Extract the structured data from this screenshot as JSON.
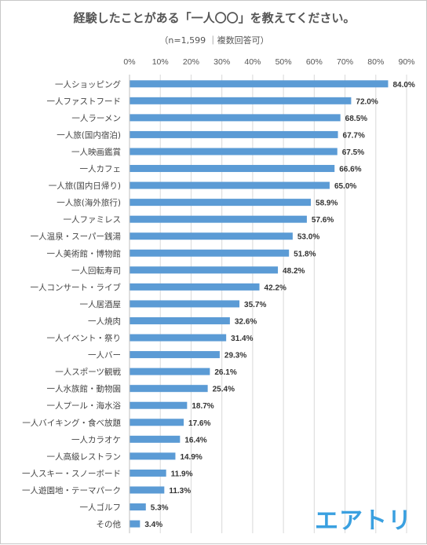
{
  "header": {
    "title": "経験したことがある「一人〇〇」を教えてください。",
    "subtitle": "（n=1,599 ｜複数回答可）"
  },
  "logo": {
    "text": "エアトリ"
  },
  "colors": {
    "bar": "#5b9bd5",
    "grid": "#d9d9d9",
    "text": "#444444",
    "logo": "#3aa0e0"
  },
  "chart_data": {
    "type": "bar",
    "orientation": "horizontal",
    "title": "経験したことがある「一人〇〇」を教えてください。",
    "subtitle": "（n=1,599 ｜複数回答可）",
    "xlim": [
      0,
      90
    ],
    "ticks": [
      "0%",
      "10%",
      "20%",
      "30%",
      "40%",
      "50%",
      "60%",
      "70%",
      "80%",
      "90%"
    ],
    "tick_values": [
      0,
      10,
      20,
      30,
      40,
      50,
      60,
      70,
      80,
      90
    ],
    "grid": true,
    "categories": [
      "一人ショッピング",
      "一人ファストフード",
      "一人ラーメン",
      "一人旅(国内宿泊)",
      "一人映画鑑賞",
      "一人カフェ",
      "一人旅(国内日帰り)",
      "一人旅(海外旅行)",
      "一人ファミレス",
      "一人温泉・スーパー銭湯",
      "一人美術館・博物館",
      "一人回転寿司",
      "一人コンサート・ライブ",
      "一人居酒屋",
      "一人焼肉",
      "一人イベント・祭り",
      "一人バー",
      "一人スポーツ観戦",
      "一人水族館・動物園",
      "一人プール・海水浴",
      "一人バイキング・食べ放題",
      "一人カラオケ",
      "一人高級レストラン",
      "一人スキー・スノーボード",
      "一人遊園地・テーマパーク",
      "一人ゴルフ",
      "その他"
    ],
    "values": [
      84.0,
      72.0,
      68.5,
      67.7,
      67.5,
      66.6,
      65.0,
      58.9,
      57.6,
      53.0,
      51.8,
      48.2,
      42.2,
      35.7,
      32.6,
      31.4,
      29.3,
      26.1,
      25.4,
      18.7,
      17.6,
      16.4,
      14.9,
      11.9,
      11.3,
      5.3,
      3.4
    ],
    "labels": [
      "84.0%",
      "72.0%",
      "68.5%",
      "67.7%",
      "67.5%",
      "66.6%",
      "65.0%",
      "58.9%",
      "57.6%",
      "53.0%",
      "51.8%",
      "48.2%",
      "42.2%",
      "35.7%",
      "32.6%",
      "31.4%",
      "29.3%",
      "26.1%",
      "25.4%",
      "18.7%",
      "17.6%",
      "16.4%",
      "14.9%",
      "11.9%",
      "11.3%",
      "5.3%",
      "3.4%"
    ]
  }
}
